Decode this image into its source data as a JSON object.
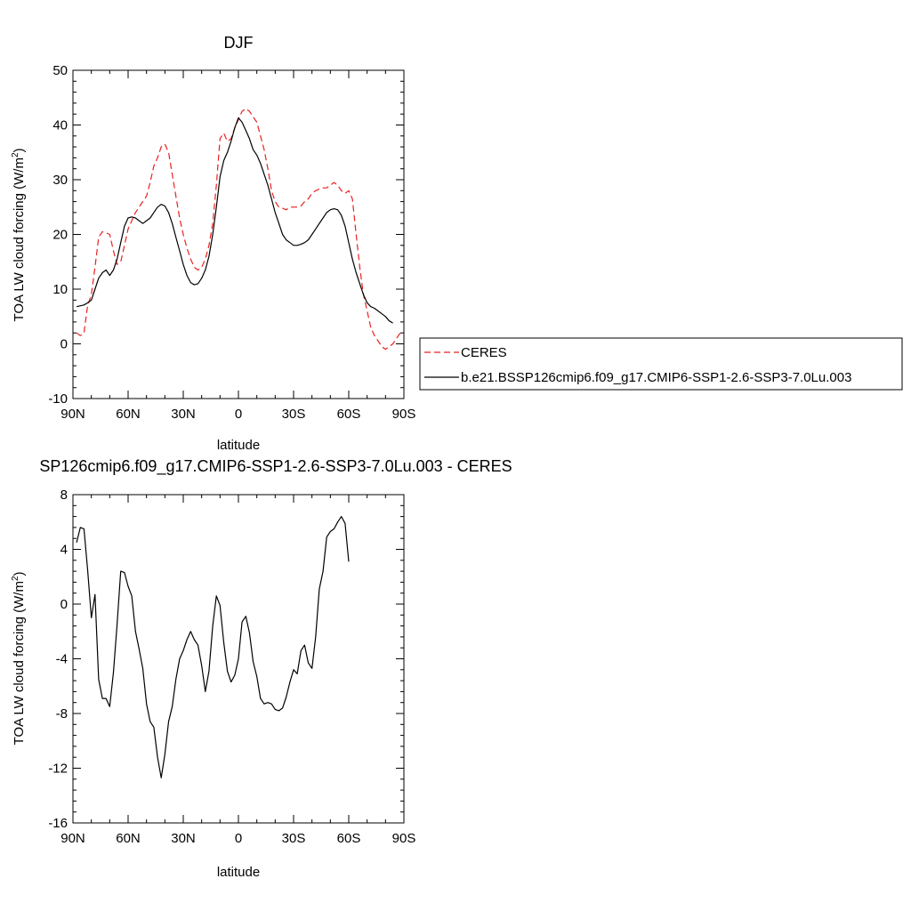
{
  "chart_data": [
    {
      "type": "line",
      "title": "DJF",
      "xlabel": "latitude",
      "ylabel": "TOA LW cloud forcing (W/m",
      "ylabel_sup": "2",
      "ylabel_end": ")",
      "xlim": [
        90,
        -90
      ],
      "ylim": [
        -10,
        50
      ],
      "yticks": [
        -10,
        0,
        10,
        20,
        30,
        40,
        50
      ],
      "xticks": [
        90,
        60,
        30,
        0,
        -30,
        -60,
        -90
      ],
      "xtick_labels": [
        "90N",
        "60N",
        "30N",
        "0",
        "30S",
        "60S",
        "90S"
      ],
      "legend_position": "right",
      "series": [
        {
          "name": "CERES",
          "color": "#e8211f",
          "dash": "dashed",
          "points": [
            [
              88,
              2
            ],
            [
              86,
              1.5
            ],
            [
              84,
              2
            ],
            [
              82,
              7
            ],
            [
              80,
              9
            ],
            [
              78,
              14
            ],
            [
              76,
              19.5
            ],
            [
              74,
              20.5
            ],
            [
              72,
              20.3
            ],
            [
              70,
              20
            ],
            [
              68,
              17
            ],
            [
              66,
              14.5
            ],
            [
              64,
              15
            ],
            [
              62,
              18
            ],
            [
              60,
              21
            ],
            [
              58,
              22.5
            ],
            [
              56,
              24
            ],
            [
              54,
              25
            ],
            [
              52,
              26
            ],
            [
              50,
              27
            ],
            [
              48,
              29.5
            ],
            [
              46,
              32.5
            ],
            [
              44,
              34
            ],
            [
              42,
              36
            ],
            [
              40,
              36.5
            ],
            [
              38,
              35
            ],
            [
              36,
              31
            ],
            [
              34,
              27
            ],
            [
              32,
              23
            ],
            [
              30,
              20
            ],
            [
              28,
              17.5
            ],
            [
              26,
              15.5
            ],
            [
              24,
              14
            ],
            [
              22,
              13.5
            ],
            [
              20,
              14
            ],
            [
              18,
              15.5
            ],
            [
              16,
              18
            ],
            [
              14,
              22
            ],
            [
              12,
              29
            ],
            [
              10,
              37.5
            ],
            [
              8,
              38.5
            ],
            [
              6,
              37
            ],
            [
              4,
              37.5
            ],
            [
              2,
              39.5
            ],
            [
              0,
              41
            ],
            [
              -2,
              42.5
            ],
            [
              -4,
              43
            ],
            [
              -6,
              42.5
            ],
            [
              -8,
              41.5
            ],
            [
              -10,
              40.5
            ],
            [
              -12,
              38
            ],
            [
              -14,
              35.5
            ],
            [
              -16,
              32
            ],
            [
              -18,
              28
            ],
            [
              -20,
              26
            ],
            [
              -22,
              25
            ],
            [
              -24,
              24.8
            ],
            [
              -26,
              24.5
            ],
            [
              -28,
              25
            ],
            [
              -30,
              25
            ],
            [
              -32,
              25
            ],
            [
              -34,
              25.2
            ],
            [
              -36,
              26
            ],
            [
              -38,
              26.5
            ],
            [
              -40,
              27.5
            ],
            [
              -42,
              28
            ],
            [
              -44,
              28.3
            ],
            [
              -46,
              28.5
            ],
            [
              -48,
              28.5
            ],
            [
              -50,
              29
            ],
            [
              -52,
              29.5
            ],
            [
              -54,
              29
            ],
            [
              -56,
              28
            ],
            [
              -58,
              27.5
            ],
            [
              -60,
              28
            ],
            [
              -62,
              26.5
            ],
            [
              -64,
              20
            ],
            [
              -66,
              14
            ],
            [
              -68,
              9
            ],
            [
              -70,
              6
            ],
            [
              -72,
              3
            ],
            [
              -74,
              1.5
            ],
            [
              -76,
              0.5
            ],
            [
              -78,
              -0.5
            ],
            [
              -80,
              -1
            ],
            [
              -82,
              -0.5
            ],
            [
              -84,
              0
            ],
            [
              -86,
              1
            ],
            [
              -88,
              2
            ]
          ]
        },
        {
          "name": "b.e21.BSSP126cmip6.f09_g17.CMIP6-SSP1-2.6-SSP3-7.0Lu.003",
          "color": "#000000",
          "dash": "solid",
          "points": [
            [
              88,
              6.8
            ],
            [
              84,
              7.1
            ],
            [
              82,
              7.5
            ],
            [
              80,
              8
            ],
            [
              78,
              10
            ],
            [
              76,
              12
            ],
            [
              74,
              13
            ],
            [
              72,
              13.5
            ],
            [
              70,
              12.5
            ],
            [
              68,
              13.5
            ],
            [
              66,
              15.5
            ],
            [
              64,
              18.5
            ],
            [
              62,
              21.5
            ],
            [
              60,
              23
            ],
            [
              58,
              23.2
            ],
            [
              56,
              23
            ],
            [
              54,
              22.5
            ],
            [
              52,
              22
            ],
            [
              50,
              22.5
            ],
            [
              48,
              23
            ],
            [
              46,
              24
            ],
            [
              44,
              25
            ],
            [
              42,
              25.5
            ],
            [
              40,
              25.2
            ],
            [
              38,
              24
            ],
            [
              36,
              22
            ],
            [
              34,
              19.5
            ],
            [
              32,
              17
            ],
            [
              30,
              14.5
            ],
            [
              28,
              12.5
            ],
            [
              26,
              11.2
            ],
            [
              24,
              10.8
            ],
            [
              22,
              11
            ],
            [
              20,
              12
            ],
            [
              18,
              13.5
            ],
            [
              16,
              16
            ],
            [
              14,
              20
            ],
            [
              12,
              25
            ],
            [
              10,
              30.5
            ],
            [
              8,
              33.5
            ],
            [
              6,
              35
            ],
            [
              4,
              37
            ],
            [
              2,
              39.5
            ],
            [
              0,
              41.3
            ],
            [
              -2,
              40.5
            ],
            [
              -4,
              39
            ],
            [
              -6,
              37.5
            ],
            [
              -8,
              35.5
            ],
            [
              -10,
              34.5
            ],
            [
              -12,
              33
            ],
            [
              -14,
              31
            ],
            [
              -16,
              29
            ],
            [
              -18,
              26.5
            ],
            [
              -20,
              24
            ],
            [
              -22,
              22
            ],
            [
              -24,
              20
            ],
            [
              -26,
              19
            ],
            [
              -28,
              18.5
            ],
            [
              -30,
              18
            ],
            [
              -32,
              18
            ],
            [
              -34,
              18.2
            ],
            [
              -36,
              18.5
            ],
            [
              -38,
              19
            ],
            [
              -40,
              20
            ],
            [
              -42,
              21
            ],
            [
              -44,
              22
            ],
            [
              -46,
              23
            ],
            [
              -48,
              24
            ],
            [
              -50,
              24.5
            ],
            [
              -52,
              24.7
            ],
            [
              -54,
              24.5
            ],
            [
              -56,
              23.5
            ],
            [
              -58,
              21.5
            ],
            [
              -60,
              18.5
            ],
            [
              -62,
              15.5
            ],
            [
              -64,
              13
            ],
            [
              -66,
              11
            ],
            [
              -68,
              9
            ],
            [
              -70,
              7.5
            ],
            [
              -72,
              6.8
            ],
            [
              -74,
              6.5
            ],
            [
              -76,
              6
            ],
            [
              -78,
              5.5
            ],
            [
              -80,
              5
            ],
            [
              -82,
              4.2
            ],
            [
              -84,
              3.8
            ]
          ]
        }
      ]
    },
    {
      "type": "line",
      "title": "SP126cmip6.f09_g17.CMIP6-SSP1-2.6-SSP3-7.0Lu.003 - CERES",
      "xlabel": "latitude",
      "ylabel": "TOA LW cloud forcing (W/m",
      "ylabel_sup": "2",
      "ylabel_end": ")",
      "xlim": [
        90,
        -90
      ],
      "ylim": [
        -16,
        8
      ],
      "yticks": [
        -16,
        -12,
        -8,
        -4,
        0,
        4,
        8
      ],
      "xticks": [
        90,
        60,
        30,
        0,
        -30,
        -60,
        -90
      ],
      "xtick_labels": [
        "90N",
        "60N",
        "30N",
        "0",
        "30S",
        "60S",
        "90S"
      ],
      "series": [
        {
          "color": "#000000",
          "dash": "solid",
          "points": [
            [
              88,
              4.5
            ],
            [
              86,
              5.6
            ],
            [
              84,
              5.5
            ],
            [
              82,
              2.5
            ],
            [
              80,
              -1.0
            ],
            [
              78,
              0.7
            ],
            [
              76,
              -5.5
            ],
            [
              74,
              -6.9
            ],
            [
              72,
              -6.9
            ],
            [
              70,
              -7.5
            ],
            [
              68,
              -5.0
            ],
            [
              66,
              -1.5
            ],
            [
              64,
              2.4
            ],
            [
              62,
              2.3
            ],
            [
              60,
              1.3
            ],
            [
              58,
              0.6
            ],
            [
              56,
              -2.0
            ],
            [
              54,
              -3.3
            ],
            [
              52,
              -4.7
            ],
            [
              50,
              -7.3
            ],
            [
              48,
              -8.6
            ],
            [
              46,
              -9.0
            ],
            [
              44,
              -11.2
            ],
            [
              42,
              -12.7
            ],
            [
              40,
              -11.0
            ],
            [
              38,
              -8.6
            ],
            [
              36,
              -7.5
            ],
            [
              34,
              -5.5
            ],
            [
              32,
              -4.0
            ],
            [
              30,
              -3.4
            ],
            [
              28,
              -2.6
            ],
            [
              26,
              -2.0
            ],
            [
              24,
              -2.6
            ],
            [
              22,
              -3.0
            ],
            [
              20,
              -4.5
            ],
            [
              18,
              -6.4
            ],
            [
              16,
              -4.9
            ],
            [
              14,
              -1.6
            ],
            [
              12,
              0.6
            ],
            [
              10,
              -0.1
            ],
            [
              8,
              -2.8
            ],
            [
              6,
              -4.9
            ],
            [
              4,
              -5.7
            ],
            [
              2,
              -5.2
            ],
            [
              0,
              -4.0
            ],
            [
              -2,
              -1.3
            ],
            [
              -4,
              -0.9
            ],
            [
              -6,
              -2.1
            ],
            [
              -8,
              -4.2
            ],
            [
              -10,
              -5.3
            ],
            [
              -12,
              -6.9
            ],
            [
              -14,
              -7.3
            ],
            [
              -16,
              -7.2
            ],
            [
              -18,
              -7.3
            ],
            [
              -20,
              -7.7
            ],
            [
              -22,
              -7.8
            ],
            [
              -24,
              -7.6
            ],
            [
              -26,
              -6.8
            ],
            [
              -28,
              -5.7
            ],
            [
              -30,
              -4.8
            ],
            [
              -32,
              -5.1
            ],
            [
              -34,
              -3.4
            ],
            [
              -36,
              -3.0
            ],
            [
              -38,
              -4.3
            ],
            [
              -40,
              -4.7
            ],
            [
              -42,
              -2.4
            ],
            [
              -44,
              1.1
            ],
            [
              -46,
              2.4
            ],
            [
              -48,
              4.9
            ],
            [
              -50,
              5.3
            ],
            [
              -52,
              5.5
            ],
            [
              -54,
              6.0
            ],
            [
              -56,
              6.4
            ],
            [
              -58,
              5.9
            ],
            [
              -60,
              3.1
            ]
          ]
        }
      ]
    }
  ]
}
